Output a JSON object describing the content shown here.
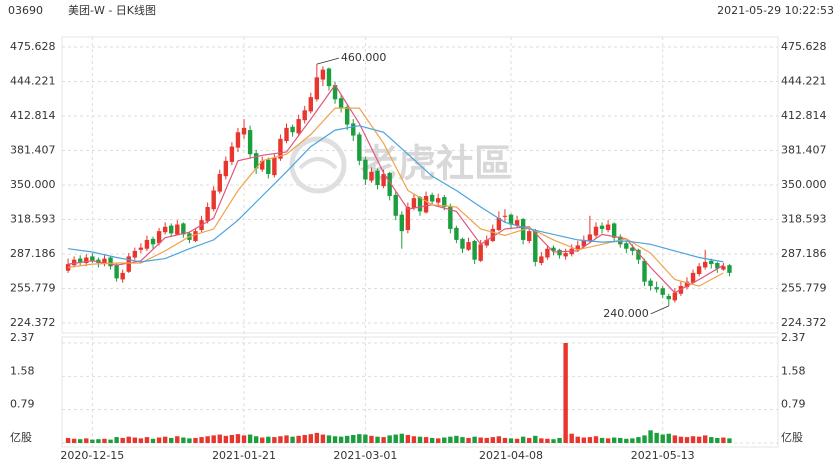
{
  "header": {
    "code": "03690",
    "name": "美团-W - 日K线图",
    "time": "2021-05-29 10:22:53"
  },
  "watermark": "老虎社區",
  "chart_data": {
    "type": "candlestick",
    "candles": [
      [
        272,
        283,
        270,
        278
      ],
      [
        277,
        285,
        275,
        282
      ],
      [
        283,
        286,
        277,
        280
      ],
      [
        279,
        287,
        276,
        284
      ],
      [
        285,
        288,
        279,
        281
      ],
      [
        282,
        284,
        275,
        279
      ],
      [
        278,
        286,
        276,
        283
      ],
      [
        284,
        285,
        273,
        276
      ],
      [
        277,
        279,
        262,
        265
      ],
      [
        264,
        273,
        261,
        270
      ],
      [
        271,
        288,
        270,
        285
      ],
      [
        284,
        293,
        282,
        290
      ],
      [
        291,
        297,
        288,
        293
      ],
      [
        292,
        304,
        290,
        300
      ],
      [
        301,
        303,
        292,
        296
      ],
      [
        297,
        311,
        295,
        308
      ],
      [
        307,
        316,
        305,
        312
      ],
      [
        313,
        315,
        303,
        306
      ],
      [
        305,
        318,
        304,
        314
      ],
      [
        315,
        316,
        302,
        305
      ],
      [
        306,
        307,
        297,
        300
      ],
      [
        299,
        311,
        298,
        308
      ],
      [
        309,
        322,
        307,
        318
      ],
      [
        317,
        334,
        315,
        330
      ],
      [
        328,
        349,
        326,
        345
      ],
      [
        344,
        364,
        342,
        360
      ],
      [
        358,
        376,
        355,
        372
      ],
      [
        371,
        389,
        368,
        385
      ],
      [
        384,
        402,
        380,
        398
      ],
      [
        396,
        410,
        392,
        402
      ],
      [
        400,
        404,
        374,
        378
      ],
      [
        379,
        382,
        360,
        365
      ],
      [
        364,
        376,
        362,
        372
      ],
      [
        373,
        375,
        356,
        360
      ],
      [
        359,
        378,
        357,
        375
      ],
      [
        374,
        396,
        372,
        392
      ],
      [
        390,
        406,
        388,
        402
      ],
      [
        403,
        405,
        394,
        398
      ],
      [
        397,
        414,
        395,
        410
      ],
      [
        409,
        422,
        406,
        418
      ],
      [
        417,
        434,
        415,
        430
      ],
      [
        428,
        460,
        426,
        448
      ],
      [
        446,
        458,
        440,
        455
      ],
      [
        456,
        457,
        436,
        440
      ],
      [
        441,
        444,
        424,
        428
      ],
      [
        429,
        432,
        416,
        420
      ],
      [
        421,
        423,
        400,
        405
      ],
      [
        406,
        410,
        390,
        395
      ],
      [
        396,
        398,
        368,
        372
      ],
      [
        373,
        376,
        350,
        355
      ],
      [
        354,
        366,
        352,
        362
      ],
      [
        363,
        365,
        346,
        350
      ],
      [
        349,
        364,
        347,
        360
      ],
      [
        361,
        362,
        336,
        340
      ],
      [
        341,
        344,
        318,
        322
      ],
      [
        323,
        326,
        292,
        308
      ],
      [
        309,
        334,
        306,
        330
      ],
      [
        329,
        342,
        327,
        338
      ],
      [
        339,
        340,
        322,
        326
      ],
      [
        325,
        344,
        324,
        340
      ],
      [
        341,
        343,
        332,
        335
      ],
      [
        334,
        342,
        331,
        338
      ],
      [
        339,
        341,
        327,
        330
      ],
      [
        331,
        333,
        306,
        310
      ],
      [
        311,
        313,
        297,
        300
      ],
      [
        301,
        302,
        288,
        292
      ],
      [
        291,
        302,
        290,
        298
      ],
      [
        299,
        300,
        278,
        282
      ],
      [
        281,
        300,
        280,
        296
      ],
      [
        295,
        304,
        293,
        300
      ],
      [
        299,
        314,
        298,
        310
      ],
      [
        309,
        326,
        308,
        320
      ],
      [
        321,
        328,
        316,
        322
      ],
      [
        323,
        324,
        310,
        314
      ],
      [
        313,
        322,
        311,
        318
      ],
      [
        319,
        320,
        296,
        300
      ],
      [
        299,
        311,
        297,
        308
      ],
      [
        309,
        310,
        276,
        280
      ],
      [
        279,
        289,
        277,
        285
      ],
      [
        284,
        295,
        282,
        292
      ],
      [
        293,
        295,
        286,
        290
      ],
      [
        291,
        292,
        283,
        286
      ],
      [
        285,
        292,
        282,
        288
      ],
      [
        287,
        296,
        285,
        292
      ],
      [
        291,
        299,
        289,
        295
      ],
      [
        294,
        304,
        292,
        300
      ],
      [
        299,
        322,
        297,
        305
      ],
      [
        304,
        316,
        302,
        312
      ],
      [
        313,
        316,
        306,
        310
      ],
      [
        309,
        318,
        307,
        314
      ],
      [
        315,
        316,
        299,
        302
      ],
      [
        303,
        305,
        293,
        296
      ],
      [
        297,
        299,
        288,
        292
      ],
      [
        293,
        296,
        286,
        290
      ],
      [
        291,
        292,
        278,
        282
      ],
      [
        281,
        283,
        258,
        262
      ],
      [
        263,
        265,
        254,
        258
      ],
      [
        257,
        262,
        252,
        255
      ],
      [
        256,
        258,
        247,
        250
      ],
      [
        249,
        251,
        240,
        246
      ],
      [
        245,
        256,
        243,
        252
      ],
      [
        251,
        262,
        249,
        258
      ],
      [
        257,
        266,
        255,
        262
      ],
      [
        261,
        273,
        260,
        270
      ],
      [
        269,
        279,
        267,
        276
      ],
      [
        275,
        291,
        273,
        280
      ],
      [
        281,
        283,
        274,
        278
      ],
      [
        279,
        280,
        270,
        274
      ],
      [
        273,
        279,
        272,
        276
      ],
      [
        277,
        278,
        267,
        270
      ]
    ],
    "up_color": "#e8352e",
    "down_color": "#1b9e3e",
    "ylim": [
      224.372,
      475.628
    ],
    "yticks": [
      224.372,
      255.779,
      287.186,
      318.593,
      {
        "value": 350,
        "label": "350.000"
      },
      381.407,
      412.814,
      444.221,
      475.628
    ],
    "xlim": [
      -1,
      117
    ],
    "xticks": [
      {
        "value": 4,
        "label": "2020-12-15"
      },
      {
        "value": 29,
        "label": "2021-01-21"
      },
      {
        "value": 49,
        "label": "2021-03-01"
      },
      {
        "value": 73,
        "label": "2021-04-08"
      },
      {
        "value": 98,
        "label": "2021-05-13"
      }
    ],
    "series": [
      {
        "color": "#e0567c",
        "x": [
          0,
          4,
          8,
          12,
          16,
          20,
          24,
          28,
          32,
          36,
          40,
          44,
          48,
          52,
          56,
          60,
          64,
          68,
          72,
          76,
          80,
          84,
          88,
          92,
          96,
          100,
          104,
          108
        ],
        "values": [
          278,
          281,
          277,
          281,
          302,
          307,
          320,
          372,
          377,
          380,
          410,
          441,
          406,
          361,
          328,
          332,
          326,
          296,
          310,
          312,
          289,
          290,
          305,
          301,
          275,
          252,
          264,
          277
        ]
      },
      {
        "color": "#f0a24a",
        "x": [
          0,
          4,
          8,
          12,
          16,
          20,
          24,
          28,
          32,
          36,
          40,
          44,
          48,
          52,
          56,
          60,
          64,
          68,
          72,
          76,
          80,
          84,
          88,
          92,
          96,
          100,
          104,
          108
        ],
        "values": [
          275,
          278,
          279,
          279,
          290,
          303,
          310,
          345,
          372,
          378,
          396,
          420,
          420,
          388,
          345,
          332,
          330,
          310,
          304,
          311,
          300,
          291,
          296,
          301,
          288,
          264,
          258,
          270
        ]
      },
      {
        "color": "#4aa3df",
        "x": [
          0,
          4,
          8,
          12,
          16,
          20,
          24,
          28,
          32,
          36,
          40,
          44,
          48,
          52,
          56,
          60,
          64,
          68,
          72,
          76,
          80,
          84,
          88,
          92,
          96,
          100,
          104,
          108
        ],
        "values": [
          292,
          289,
          284,
          280,
          283,
          292,
          300,
          318,
          340,
          362,
          385,
          400,
          404,
          398,
          378,
          358,
          345,
          330,
          316,
          310,
          305,
          300,
          298,
          299,
          296,
          290,
          284,
          280
        ]
      }
    ],
    "annotations": [
      {
        "x": 41,
        "value": 460,
        "label": "460.000"
      },
      {
        "x": 99,
        "value": 240,
        "label": "240.000"
      }
    ],
    "volume": {
      "values": [
        0.12,
        0.1,
        0.09,
        0.11,
        0.08,
        0.09,
        0.1,
        0.08,
        0.14,
        0.12,
        0.15,
        0.13,
        0.11,
        0.14,
        0.1,
        0.13,
        0.15,
        0.12,
        0.16,
        0.13,
        0.11,
        0.12,
        0.14,
        0.16,
        0.18,
        0.2,
        0.17,
        0.19,
        0.21,
        0.18,
        0.2,
        0.16,
        0.13,
        0.15,
        0.14,
        0.16,
        0.18,
        0.15,
        0.17,
        0.19,
        0.21,
        0.24,
        0.2,
        0.18,
        0.16,
        0.15,
        0.17,
        0.19,
        0.21,
        0.2,
        0.17,
        0.15,
        0.14,
        0.18,
        0.2,
        0.22,
        0.19,
        0.16,
        0.15,
        0.14,
        0.12,
        0.11,
        0.13,
        0.15,
        0.17,
        0.14,
        0.12,
        0.15,
        0.13,
        0.12,
        0.14,
        0.16,
        0.12,
        0.11,
        0.1,
        0.15,
        0.12,
        0.17,
        0.11,
        0.1,
        0.09,
        0.12,
        2.37,
        0.22,
        0.15,
        0.13,
        0.14,
        0.16,
        0.12,
        0.11,
        0.13,
        0.12,
        0.1,
        0.11,
        0.14,
        0.18,
        0.3,
        0.24,
        0.2,
        0.22,
        0.18,
        0.15,
        0.14,
        0.16,
        0.15,
        0.18,
        0.14,
        0.12,
        0.13,
        0.11
      ],
      "ylim": [
        0,
        2.37
      ],
      "yticks": [
        {
          "value": 0,
          "label": "亿股"
        },
        0.79,
        1.58,
        2.37
      ]
    }
  }
}
